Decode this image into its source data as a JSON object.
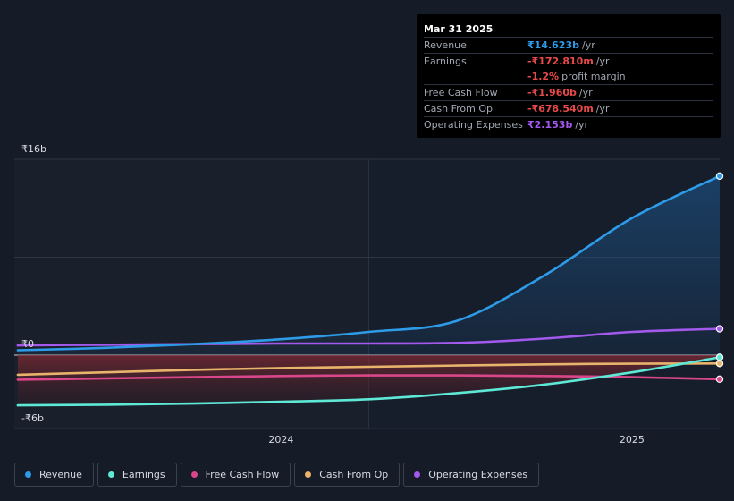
{
  "tooltip": {
    "date": "Mar 31 2025",
    "rows": [
      {
        "label": "Revenue",
        "value": "₹14.623b",
        "unit": "/yr",
        "color": "#2d9be8"
      },
      {
        "label": "Earnings",
        "value": "-₹172.810m",
        "unit": "/yr",
        "color": "#e84a4a"
      },
      {
        "label": "",
        "value": "-1.2%",
        "unit": "profit margin",
        "color": "#e84a4a"
      },
      {
        "label": "Free Cash Flow",
        "value": "-₹1.960b",
        "unit": "/yr",
        "color": "#e84a4a"
      },
      {
        "label": "Cash From Op",
        "value": "-₹678.540m",
        "unit": "/yr",
        "color": "#e84a4a"
      },
      {
        "label": "Operating Expenses",
        "value": "₹2.153b",
        "unit": "/yr",
        "color": "#a259ec"
      }
    ]
  },
  "legend": [
    {
      "label": "Revenue",
      "color": "#2d9be8"
    },
    {
      "label": "Earnings",
      "color": "#5ee8d6"
    },
    {
      "label": "Free Cash Flow",
      "color": "#d9468a"
    },
    {
      "label": "Cash From Op",
      "color": "#e8b36a"
    },
    {
      "label": "Operating Expenses",
      "color": "#a259ec"
    }
  ],
  "chart_data": {
    "type": "line",
    "title": "",
    "xlabel": "",
    "ylabel": "",
    "ylim": [
      -6,
      16
    ],
    "y_tick_labels": [
      "₹16b",
      "₹0",
      "-₹6b"
    ],
    "x_tick_labels": [
      {
        "label": "2024",
        "x": 2024.0
      },
      {
        "label": "2025",
        "x": 2025.0
      }
    ],
    "xlim": [
      2023.24,
      2025.25
    ],
    "past_region_end": 2024.25,
    "series": [
      {
        "name": "Revenue",
        "color": "#2d9be8",
        "x": [
          2023.25,
          2023.5,
          2023.75,
          2024.0,
          2024.25,
          2024.5,
          2024.75,
          2025.0,
          2025.25
        ],
        "y": [
          0.4,
          0.6,
          0.9,
          1.3,
          1.9,
          2.8,
          6.5,
          11.2,
          14.623
        ]
      },
      {
        "name": "Earnings",
        "color": "#5ee8d6",
        "x": [
          2023.25,
          2023.5,
          2023.75,
          2024.0,
          2024.25,
          2024.5,
          2024.75,
          2025.0,
          2025.25
        ],
        "y": [
          -4.1,
          -4.05,
          -3.95,
          -3.8,
          -3.6,
          -3.1,
          -2.4,
          -1.4,
          -0.17281
        ]
      },
      {
        "name": "Free Cash Flow",
        "color": "#d9468a",
        "x": [
          2023.25,
          2023.5,
          2023.75,
          2024.0,
          2024.25,
          2024.5,
          2024.75,
          2025.0,
          2025.25
        ],
        "y": [
          -2.0,
          -1.9,
          -1.8,
          -1.7,
          -1.65,
          -1.65,
          -1.7,
          -1.8,
          -1.96
        ]
      },
      {
        "name": "Cash From Op",
        "color": "#e8b36a",
        "x": [
          2023.25,
          2023.5,
          2023.75,
          2024.0,
          2024.25,
          2024.5,
          2024.75,
          2025.0,
          2025.25
        ],
        "y": [
          -1.6,
          -1.4,
          -1.2,
          -1.05,
          -0.95,
          -0.85,
          -0.75,
          -0.7,
          -0.67854
        ]
      },
      {
        "name": "Operating Expenses",
        "color": "#a259ec",
        "x": [
          2023.25,
          2023.5,
          2023.75,
          2024.0,
          2024.25,
          2024.5,
          2024.75,
          2025.0,
          2025.25
        ],
        "y": [
          0.8,
          0.85,
          0.9,
          0.95,
          0.95,
          1.0,
          1.35,
          1.9,
          2.153
        ]
      }
    ]
  }
}
